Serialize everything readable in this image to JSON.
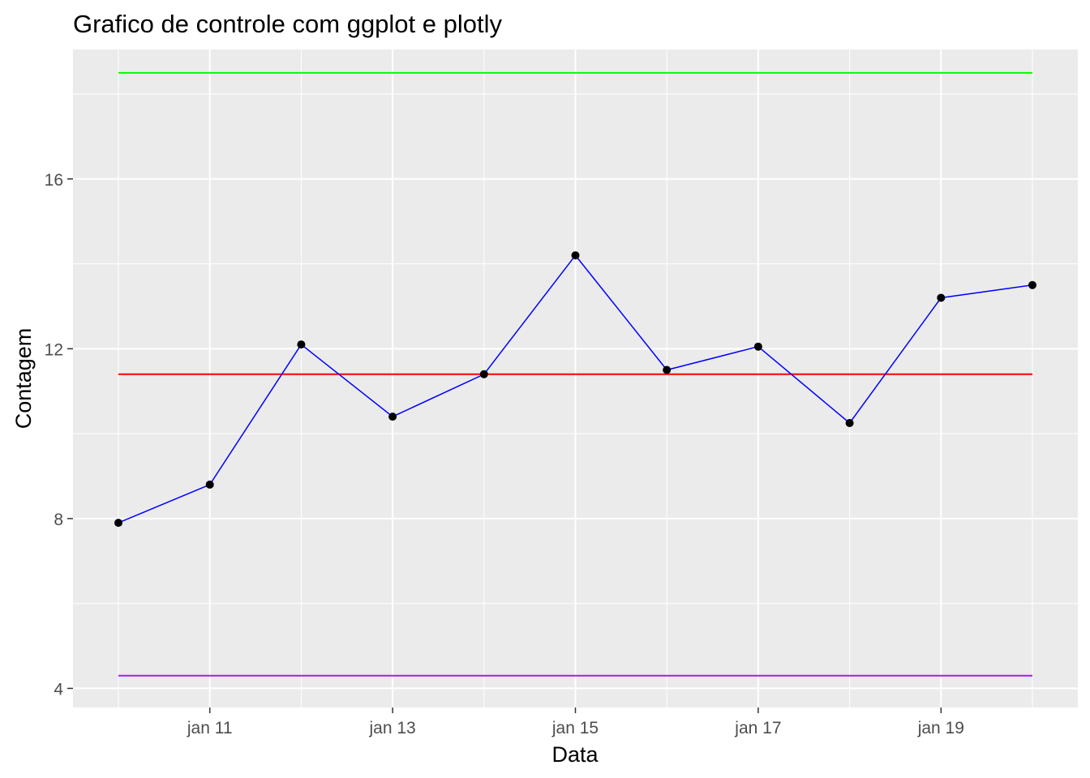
{
  "chart_data": {
    "type": "line",
    "title": "Grafico de controle com ggplot e plotly",
    "xlabel": "Data",
    "ylabel": "Contagem",
    "x": [
      "jan 10",
      "jan 11",
      "jan 12",
      "jan 13",
      "jan 14",
      "jan 15",
      "jan 16",
      "jan 17",
      "jan 18",
      "jan 19",
      "jan 20"
    ],
    "x_ticks": [
      "jan 11",
      "jan 13",
      "jan 15",
      "jan 17",
      "jan 19"
    ],
    "y_ticks": [
      4,
      8,
      12,
      16
    ],
    "ylim": [
      3.55,
      19.05
    ],
    "grid": true,
    "series": [
      {
        "values": [
          7.9,
          8.8,
          12.1,
          10.4,
          11.4,
          14.2,
          11.5,
          12.05,
          10.25,
          13.2,
          13.5
        ],
        "color": "#0000ff",
        "points": true,
        "point_color": "#000000"
      }
    ],
    "reference_lines": [
      {
        "y": 18.5,
        "color": "#00ff00"
      },
      {
        "y": 11.4,
        "color": "#ff0000"
      },
      {
        "y": 4.3,
        "color": "#a020f0"
      }
    ]
  }
}
